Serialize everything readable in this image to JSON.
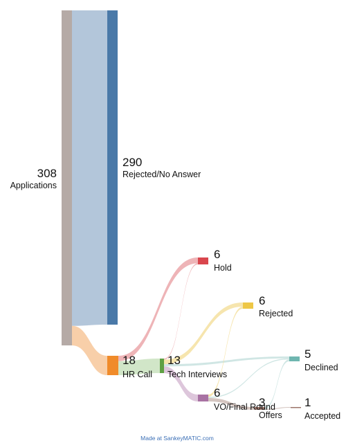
{
  "diagram": {
    "type": "sankey",
    "nodes": [
      {
        "id": "applications",
        "label": "Applications",
        "value": "308",
        "color": "#b5aaa6"
      },
      {
        "id": "rejected_no_answer",
        "label": "Rejected/No Answer",
        "value": "290",
        "color": "#4a79a8"
      },
      {
        "id": "hr_call",
        "label": "HR Call",
        "value": "18",
        "color": "#f08b2a"
      },
      {
        "id": "hold",
        "label": "Hold",
        "value": "6",
        "color": "#d9464d"
      },
      {
        "id": "rejected",
        "label": "Rejected",
        "value": "6",
        "color": "#eec746"
      },
      {
        "id": "tech_interviews",
        "label": "Tech Interviews",
        "value": "13",
        "color": "#5fa044"
      },
      {
        "id": "declined",
        "label": "Declined",
        "value": "5",
        "color": "#6fb6b0"
      },
      {
        "id": "vo_final_round",
        "label": "VO/Final Round",
        "value": "6",
        "color": "#a872a3"
      },
      {
        "id": "offers",
        "label": "Offers",
        "value": "3",
        "color": "#9c756a"
      },
      {
        "id": "accepted",
        "label": "Accepted",
        "value": "1",
        "color": "#9c756a"
      }
    ],
    "flows": [
      {
        "from": "applications",
        "to": "rejected_no_answer",
        "value": 290
      },
      {
        "from": "applications",
        "to": "hr_call",
        "value": 18
      },
      {
        "from": "hr_call",
        "to": "hold",
        "value": 5
      },
      {
        "from": "hr_call",
        "to": "tech_interviews",
        "value": 13
      },
      {
        "from": "tech_interviews",
        "to": "hold",
        "value": 1
      },
      {
        "from": "tech_interviews",
        "to": "rejected",
        "value": 4
      },
      {
        "from": "tech_interviews",
        "to": "declined",
        "value": 2
      },
      {
        "from": "tech_interviews",
        "to": "vo_final_round",
        "value": 6
      },
      {
        "from": "vo_final_round",
        "to": "rejected",
        "value": 2
      },
      {
        "from": "vo_final_round",
        "to": "declined",
        "value": 1
      },
      {
        "from": "vo_final_round",
        "to": "offers",
        "value": 3
      },
      {
        "from": "offers",
        "to": "declined",
        "value": 2
      },
      {
        "from": "offers",
        "to": "accepted",
        "value": 1
      }
    ]
  },
  "footer": {
    "credit_prefix": "Made at ",
    "credit_link": "SankeyMATIC.com",
    "link_color": "#3b6fb6"
  }
}
